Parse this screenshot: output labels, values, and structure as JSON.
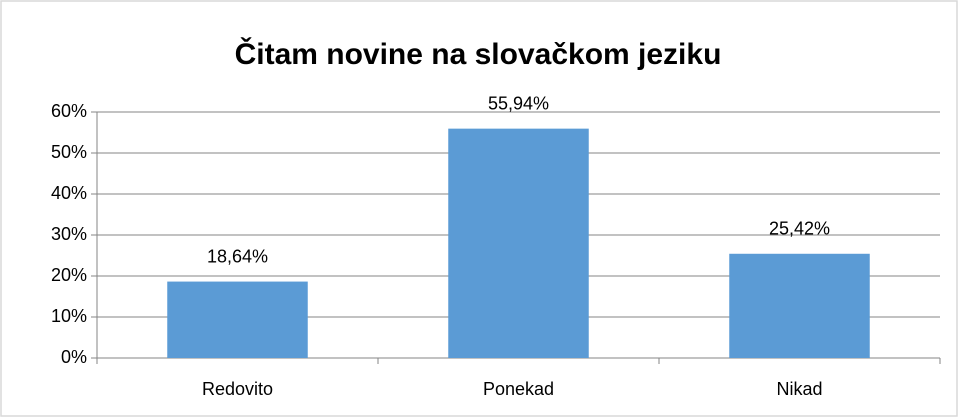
{
  "chart_data": {
    "type": "bar",
    "title": "Čitam novine na slovačkom jeziku",
    "categories": [
      "Redovito",
      "Ponekad",
      "Nikad"
    ],
    "values": [
      18.64,
      55.94,
      25.42
    ],
    "value_labels": [
      "18,64%",
      "55,94%",
      "25,42%"
    ],
    "color": "#5b9bd5",
    "ylim": [
      0,
      60
    ],
    "yticks": [
      {
        "value": 0,
        "label": "0%"
      },
      {
        "value": 10,
        "label": "10%"
      },
      {
        "value": 20,
        "label": "20%"
      },
      {
        "value": 30,
        "label": "30%"
      },
      {
        "value": 40,
        "label": "40%"
      },
      {
        "value": 50,
        "label": "50%"
      },
      {
        "value": 60,
        "label": "60%"
      }
    ],
    "grid": true
  }
}
